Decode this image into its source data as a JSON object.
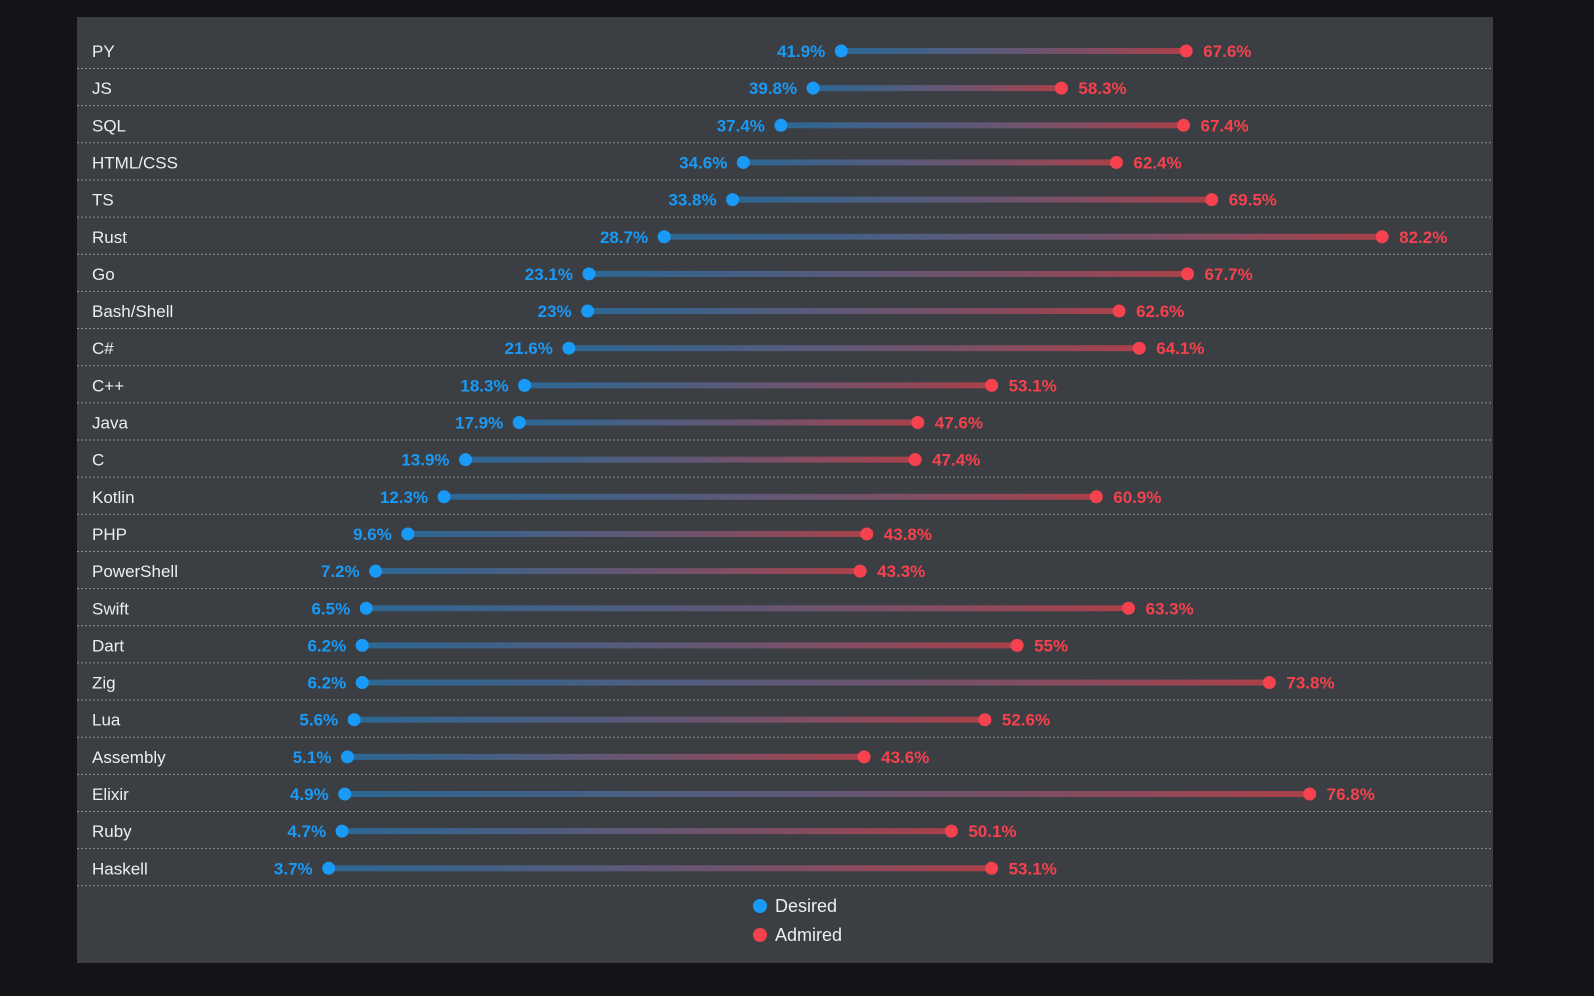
{
  "chart_data": {
    "type": "dumbbell",
    "title": "",
    "xlabel": "",
    "ylabel": "",
    "xlim": [
      0,
      100
    ],
    "grid": "horizontal dashed row separators",
    "legend_placement": "bottom-center",
    "unit": "%",
    "categories": [
      "PY",
      "JS",
      "SQL",
      "HTML/CSS",
      "TS",
      "Rust",
      "Go",
      "Bash/Shell",
      "C#",
      "C++",
      "Java",
      "C",
      "Kotlin",
      "PHP",
      "PowerShell",
      "Swift",
      "Dart",
      "Zig",
      "Lua",
      "Assembly",
      "Elixir",
      "Ruby",
      "Haskell"
    ],
    "series": [
      {
        "name": "Desired",
        "color": "#1a9af7",
        "values": [
          41.9,
          39.8,
          37.4,
          34.6,
          33.8,
          28.7,
          23.1,
          23,
          21.6,
          18.3,
          17.9,
          13.9,
          12.3,
          9.6,
          7.2,
          6.5,
          6.2,
          6.2,
          5.6,
          5.1,
          4.9,
          4.7,
          3.7
        ]
      },
      {
        "name": "Admired",
        "color": "#f5424e",
        "values": [
          67.6,
          58.3,
          67.4,
          62.4,
          69.5,
          82.2,
          67.7,
          62.6,
          64.1,
          53.1,
          47.6,
          47.4,
          60.9,
          43.8,
          43.3,
          63.3,
          55,
          73.8,
          52.6,
          43.6,
          76.8,
          50.1,
          53.1
        ]
      }
    ]
  },
  "colors": {
    "background": "#131318",
    "panel": "#3b3e42",
    "text": "#eceff2"
  }
}
